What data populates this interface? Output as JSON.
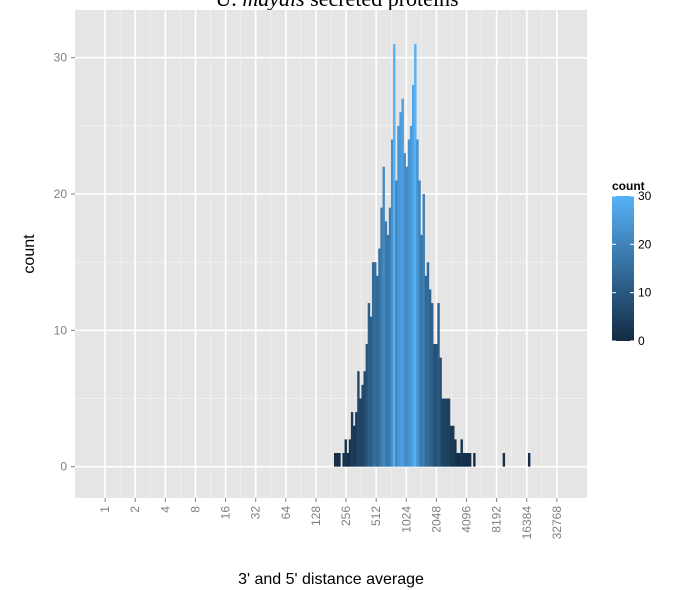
{
  "chart_data": {
    "type": "bar",
    "title_prefix": "U. ",
    "title_italic": "maydis",
    "title_suffix": " secreted proteins",
    "xlabel": "3' and 5' distance average",
    "ylabel": "count",
    "x_scale": "log2",
    "xlim": [
      0.5,
      65536
    ],
    "ylim": [
      -2.3,
      33.5
    ],
    "x_ticks": [
      1,
      2,
      4,
      8,
      16,
      32,
      64,
      128,
      256,
      512,
      1024,
      2048,
      4096,
      8192,
      16384,
      32768
    ],
    "x_tick_labels": [
      "1",
      "2",
      "4",
      "8",
      "16",
      "32",
      "64",
      "128",
      "256",
      "512",
      "1024",
      "2048",
      "4096",
      "8192",
      "16384",
      "32768"
    ],
    "y_ticks": [
      0,
      10,
      20,
      30
    ],
    "y_tick_labels": [
      "0",
      "10",
      "20",
      "30"
    ],
    "bin_start_log2": 7.6,
    "bin_width_log2": 0.07,
    "bin_counts": [
      1,
      1,
      1,
      0,
      1,
      2,
      1,
      2,
      4,
      3,
      4,
      7,
      5,
      6,
      7,
      9,
      12,
      11,
      15,
      15,
      14,
      16,
      19,
      22,
      18,
      17,
      19,
      24,
      31,
      21,
      25,
      26,
      27,
      23,
      22,
      24,
      25,
      28,
      31,
      24,
      21,
      17,
      20,
      14,
      15,
      13,
      12,
      9,
      9,
      12,
      8,
      5,
      5,
      5,
      5,
      3,
      3,
      2,
      1,
      1,
      2,
      1,
      1,
      1,
      1,
      0,
      1,
      0,
      0,
      0,
      0,
      0,
      0,
      0,
      0,
      0,
      0,
      0,
      0,
      0,
      1,
      0,
      0,
      0,
      0,
      0,
      0,
      0,
      0,
      0,
      0,
      0,
      1
    ],
    "legend": {
      "title": "count",
      "ticks": [
        0,
        10,
        20,
        30
      ],
      "tick_labels": [
        "0",
        "10",
        "20",
        "30"
      ],
      "placement": "right"
    },
    "colors": {
      "low": "#132B43",
      "high": "#56B1F7",
      "panel": "#E5E5E5",
      "grid": "#ffffff"
    },
    "grid": true
  }
}
